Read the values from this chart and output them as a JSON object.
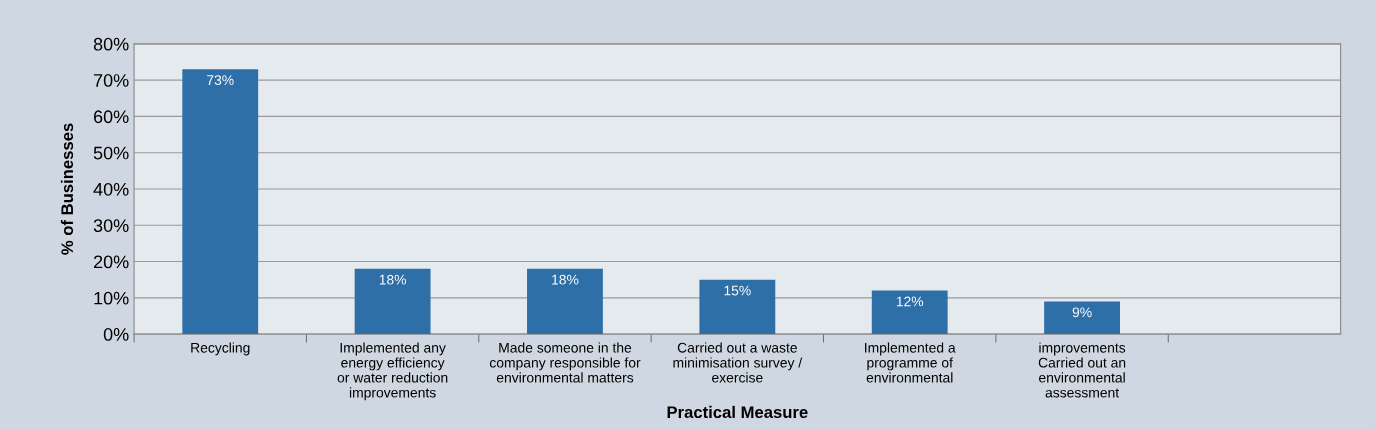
{
  "chart_data": {
    "type": "bar",
    "xlabel": "Practical Measure",
    "ylabel": "% of Businesses",
    "categories": [
      "Recycling",
      "Implemented any\nenergy efficiency\nor water reduction\nimprovements",
      "Made someone in the\ncompany responsible for\nenvironmental matters",
      "Carried out a waste\nminimisation survey /\nexercise",
      "Implemented a\nprogramme of\nenvironmental",
      "improvements\nCarried out an\nenvironmental\nassessment",
      null
    ],
    "values": [
      73,
      18,
      18,
      15,
      12,
      9,
      null
    ],
    "value_labels": [
      "73%",
      "18%",
      "18%",
      "15%",
      "12%",
      "9%",
      null
    ],
    "color": "#2f6fa8",
    "ylim": [
      0,
      80
    ],
    "yticks": [
      {
        "value": 0,
        "label": "0%"
      },
      {
        "value": 10,
        "label": "10%"
      },
      {
        "value": 20,
        "label": "20%"
      },
      {
        "value": 30,
        "label": "30%"
      },
      {
        "value": 40,
        "label": "40%"
      },
      {
        "value": 50,
        "label": "50%"
      },
      {
        "value": 60,
        "label": "60%"
      },
      {
        "value": 70,
        "label": "70%"
      },
      {
        "value": 80,
        "label": "80%"
      }
    ],
    "grid": "y",
    "legend": false
  }
}
